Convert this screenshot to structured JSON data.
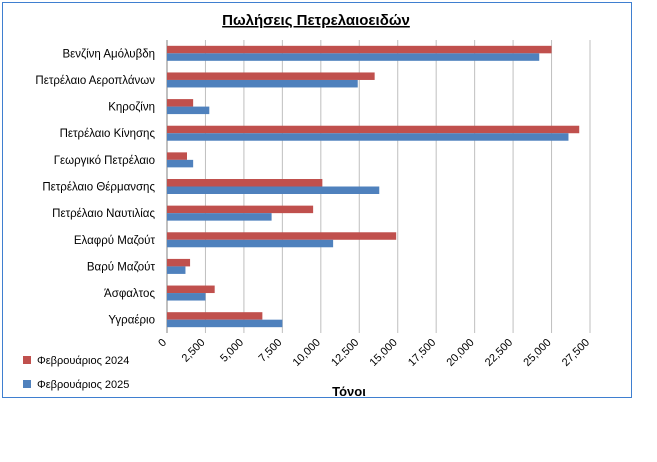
{
  "chart_data": {
    "type": "bar",
    "orientation": "horizontal",
    "title": "Πωλήσεις Πετρελαιοειδών",
    "xlabel": "Τόνοι",
    "ylabel": "",
    "xlim": [
      0,
      27500
    ],
    "xticks": [
      0,
      2500,
      5000,
      7500,
      10000,
      12500,
      15000,
      17500,
      20000,
      22500,
      25000,
      27500
    ],
    "xtick_labels": [
      "0",
      "2,500",
      "5,000",
      "7,500",
      "10,000",
      "12,500",
      "15,000",
      "17,500",
      "20,000",
      "22,500",
      "25,000",
      "27,500"
    ],
    "grid": "vertical",
    "legend_position": "bottom-left",
    "categories": [
      "Βενζίνη Αμόλυβδη",
      "Πετρέλαιο Αεροπλάνων",
      "Κηροζίνη",
      "Πετρέλαιο Κίνησης",
      "Γεωργικό Πετρέλαιο",
      "Πετρέλαιο Θέρμανσης",
      "Πετρέλαιο Ναυτιλίας",
      "Ελαφρύ Μαζούτ",
      "Βαρύ Μαζούτ",
      "Άσφαλτος",
      "Υγραέριο"
    ],
    "series": [
      {
        "name": "Φεβρουάριος 2024",
        "color": "#c0504d",
        "values": [
          25000,
          13500,
          1700,
          26800,
          1300,
          10100,
          9500,
          14900,
          1500,
          3100,
          6200
        ]
      },
      {
        "name": "Φεβρουάριος 2025",
        "color": "#4f81bd",
        "values": [
          24200,
          12400,
          2750,
          26100,
          1700,
          13800,
          6800,
          10800,
          1200,
          2500,
          7500
        ]
      }
    ]
  }
}
